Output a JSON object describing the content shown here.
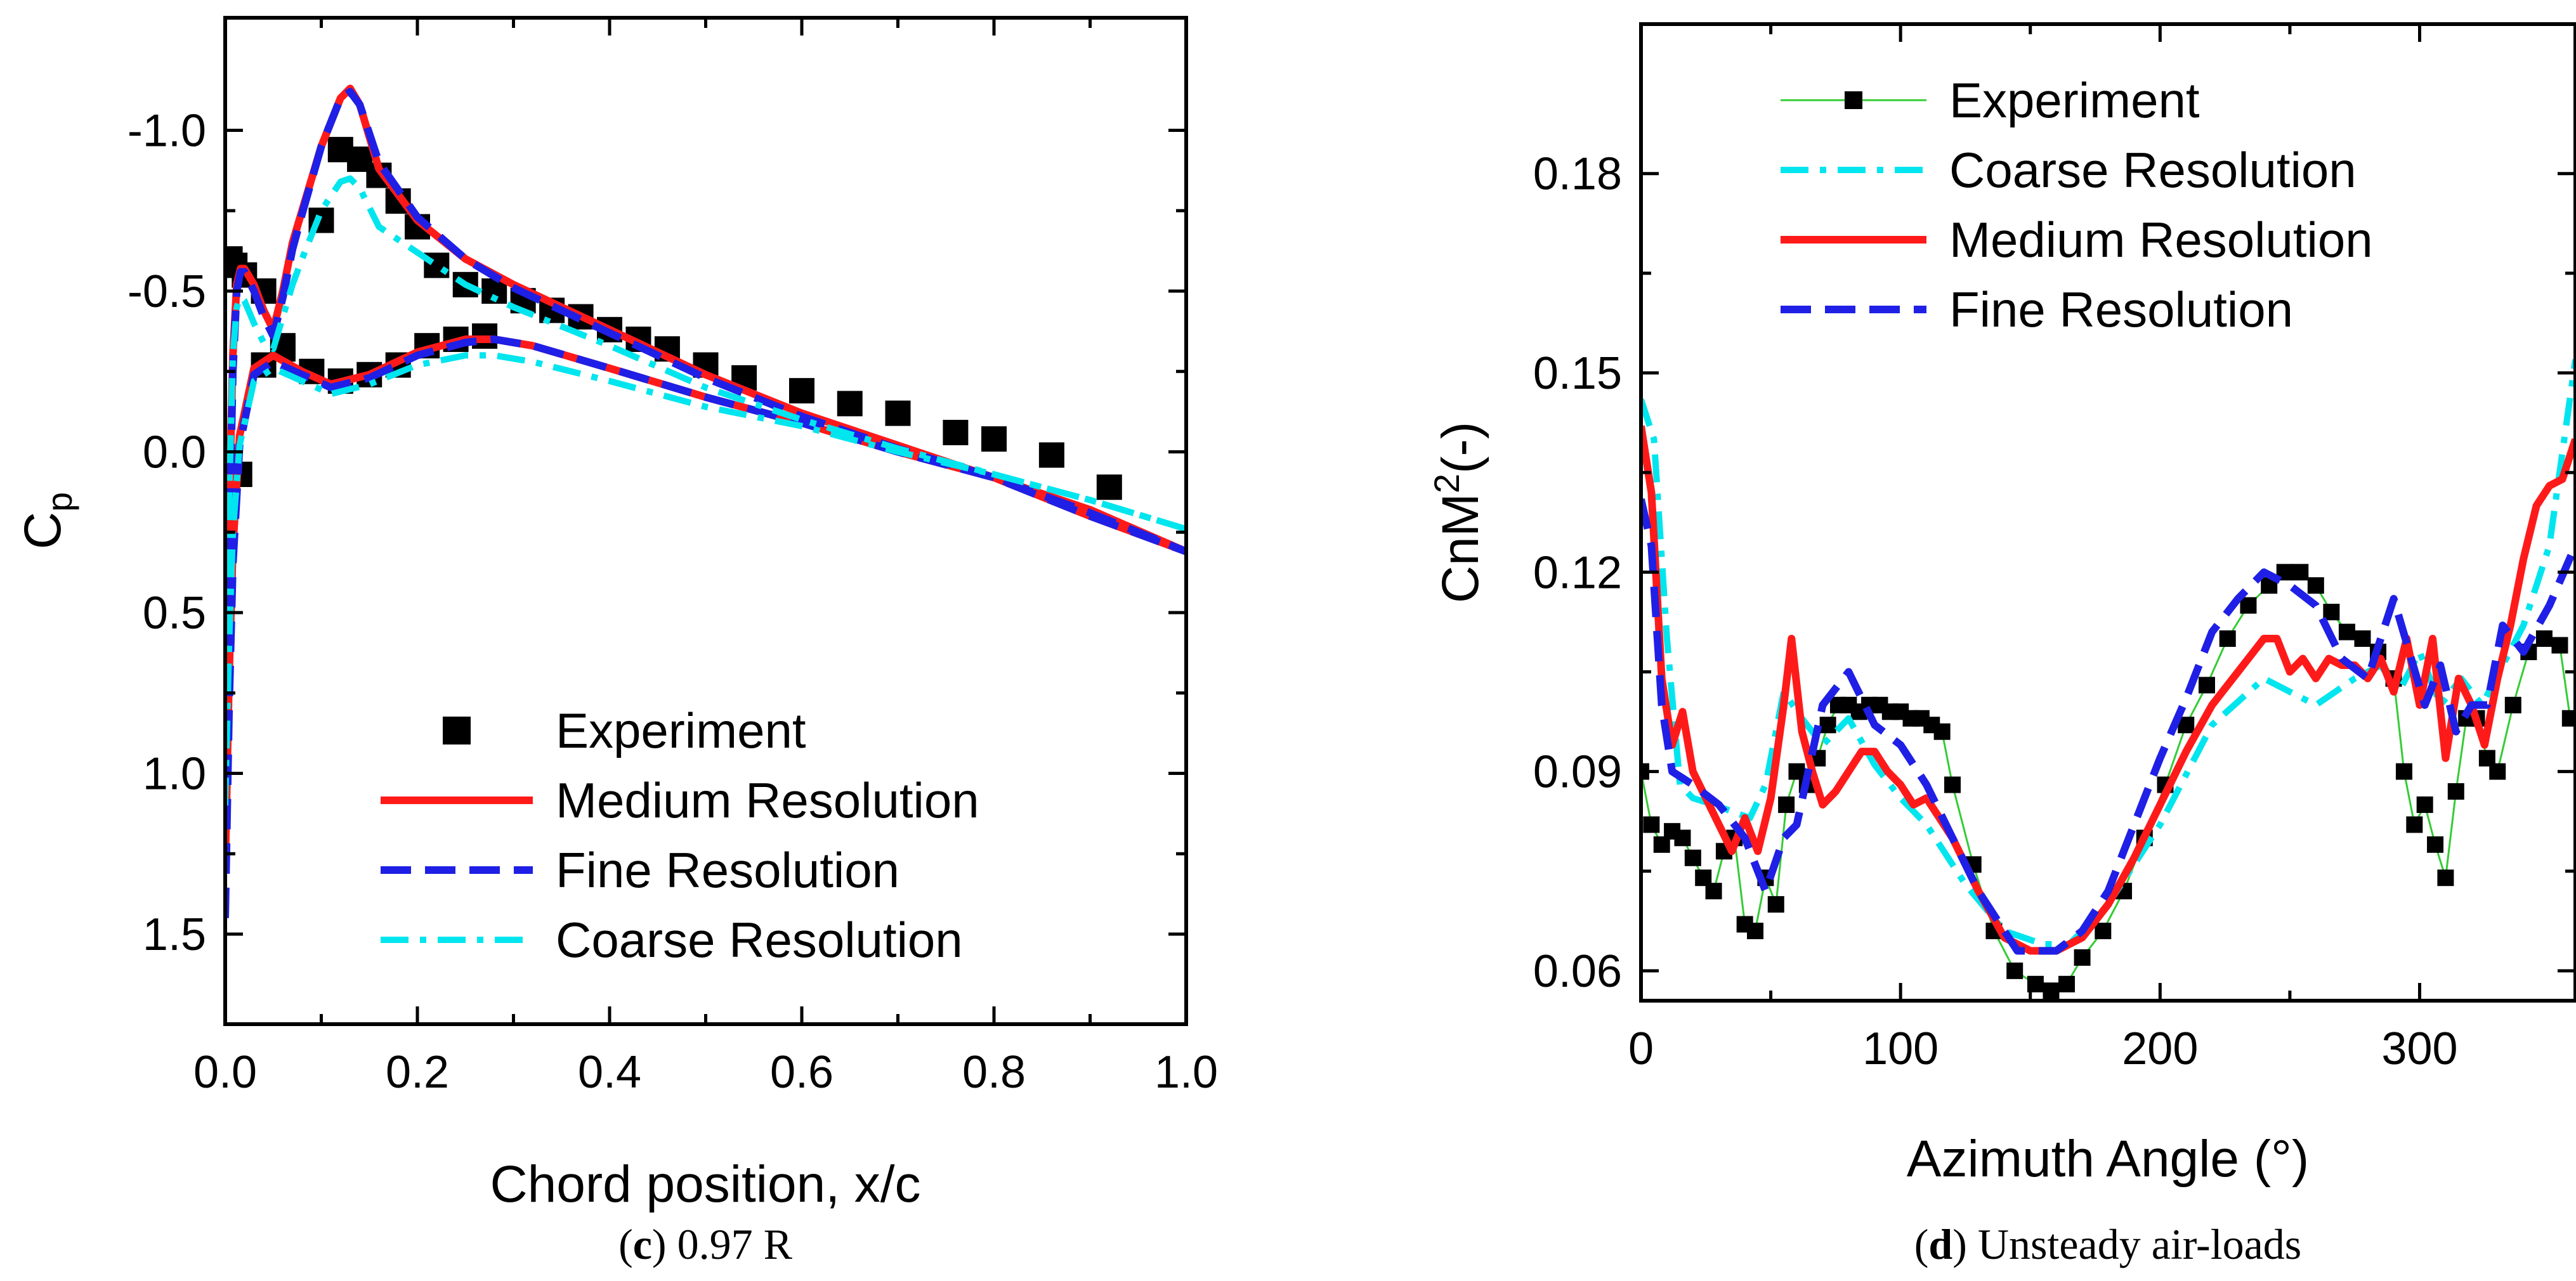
{
  "chart_data": [
    {
      "type": "line",
      "panel_label": "c",
      "caption": "0.97 R",
      "xlabel": "Chord position, x/c",
      "ylabel": "C",
      "ylabel_sub": "p",
      "xlim": [
        0.0,
        1.0
      ],
      "ylim": [
        -1.35,
        1.78
      ],
      "y_inverted": true,
      "x_ticks": [
        0.0,
        0.2,
        0.4,
        0.6,
        0.8,
        1.0
      ],
      "x_tick_labels": [
        "0.0",
        "0.2",
        "0.4",
        "0.6",
        "0.8",
        "1.0"
      ],
      "y_ticks": [
        -1.0,
        -0.5,
        0.0,
        0.5,
        1.0,
        1.5
      ],
      "y_tick_labels": [
        "-1.0",
        "-0.5",
        "0.0",
        "0.5",
        "1.0",
        "1.5"
      ],
      "legend_position": "bottom-right",
      "legend": [
        {
          "label": "Experiment",
          "series": "Experiment"
        },
        {
          "label": "Medium Resolution",
          "series": "Medium Resolution"
        },
        {
          "label": "Fine Resolution",
          "series": "Fine Resolution"
        },
        {
          "label": "Coarse Resolution",
          "series": "Coarse Resolution"
        }
      ],
      "series": [
        {
          "name": "Experiment",
          "style": "square-markers",
          "color": "#000000",
          "x": [
            0.005,
            0.01,
            0.02,
            0.04,
            0.06,
            0.1,
            0.12,
            0.14,
            0.16,
            0.18,
            0.2,
            0.22,
            0.25,
            0.28,
            0.31,
            0.34,
            0.37,
            0.4,
            0.43,
            0.46,
            0.5,
            0.54,
            0.6,
            0.65,
            0.7,
            0.76,
            0.8,
            0.86,
            0.92,
            0.015,
            0.04,
            0.06,
            0.09,
            0.12,
            0.15,
            0.18,
            0.21,
            0.24,
            0.27
          ],
          "y": [
            -0.6,
            -0.58,
            -0.55,
            -0.5,
            -0.33,
            -0.72,
            -0.94,
            -0.91,
            -0.86,
            -0.78,
            -0.7,
            -0.58,
            -0.52,
            -0.5,
            -0.47,
            -0.44,
            -0.42,
            -0.38,
            -0.35,
            -0.32,
            -0.27,
            -0.23,
            -0.19,
            -0.15,
            -0.12,
            -0.06,
            -0.04,
            0.01,
            0.11,
            0.07,
            -0.27,
            -0.32,
            -0.25,
            -0.22,
            -0.24,
            -0.27,
            -0.33,
            -0.35,
            -0.36
          ]
        },
        {
          "name": "Medium Resolution",
          "style": "solid",
          "color": "#ff1a1a",
          "x": [
            0.0,
            0.004,
            0.008,
            0.012,
            0.016,
            0.02,
            0.03,
            0.04,
            0.05,
            0.06,
            0.07,
            0.08,
            0.1,
            0.12,
            0.13,
            0.14,
            0.16,
            0.2,
            0.25,
            0.3,
            0.4,
            0.5,
            0.6,
            0.7,
            0.8,
            0.9,
            1.0,
            null,
            0.0,
            0.004,
            0.008,
            0.015,
            0.03,
            0.05,
            0.08,
            0.11,
            0.15,
            0.2,
            0.25,
            0.28,
            0.32,
            0.4,
            0.5,
            0.6,
            0.7,
            0.8,
            0.9,
            1.0
          ],
          "y": [
            1.3,
            0.2,
            -0.3,
            -0.52,
            -0.57,
            -0.57,
            -0.52,
            -0.44,
            -0.38,
            -0.5,
            -0.65,
            -0.75,
            -0.95,
            -1.1,
            -1.13,
            -1.08,
            -0.88,
            -0.72,
            -0.6,
            -0.52,
            -0.38,
            -0.24,
            -0.12,
            -0.02,
            0.08,
            0.2,
            0.31,
            null,
            1.3,
            0.7,
            0.3,
            -0.05,
            -0.26,
            -0.3,
            -0.25,
            -0.21,
            -0.24,
            -0.31,
            -0.35,
            -0.35,
            -0.33,
            -0.26,
            -0.17,
            -0.09,
            0.0,
            0.08,
            0.18,
            0.31
          ]
        },
        {
          "name": "Fine Resolution",
          "style": "dashed",
          "color": "#1f1fe6",
          "x": [
            0.0,
            0.004,
            0.008,
            0.012,
            0.016,
            0.02,
            0.03,
            0.04,
            0.05,
            0.06,
            0.07,
            0.08,
            0.1,
            0.12,
            0.13,
            0.14,
            0.16,
            0.2,
            0.25,
            0.3,
            0.4,
            0.5,
            0.6,
            0.7,
            0.8,
            0.9,
            1.0,
            null,
            0.0,
            0.004,
            0.008,
            0.015,
            0.03,
            0.05,
            0.08,
            0.11,
            0.15,
            0.2,
            0.25,
            0.28,
            0.32,
            0.4,
            0.5,
            0.6,
            0.7,
            0.8,
            0.9,
            1.0
          ],
          "y": [
            1.45,
            0.3,
            -0.25,
            -0.5,
            -0.56,
            -0.56,
            -0.5,
            -0.42,
            -0.36,
            -0.48,
            -0.63,
            -0.74,
            -0.95,
            -1.1,
            -1.12,
            -1.08,
            -0.9,
            -0.73,
            -0.6,
            -0.51,
            -0.37,
            -0.23,
            -0.11,
            -0.01,
            0.08,
            0.2,
            0.31,
            null,
            1.45,
            0.8,
            0.35,
            -0.02,
            -0.24,
            -0.28,
            -0.24,
            -0.2,
            -0.23,
            -0.3,
            -0.34,
            -0.35,
            -0.33,
            -0.26,
            -0.17,
            -0.09,
            0.0,
            0.08,
            0.19,
            0.31
          ]
        },
        {
          "name": "Coarse Resolution",
          "style": "dash-dot",
          "color": "#00e5ee",
          "x": [
            0.0,
            0.004,
            0.008,
            0.012,
            0.016,
            0.02,
            0.03,
            0.04,
            0.05,
            0.06,
            0.07,
            0.08,
            0.1,
            0.12,
            0.13,
            0.14,
            0.16,
            0.2,
            0.25,
            0.3,
            0.4,
            0.5,
            0.6,
            0.7,
            0.8,
            0.9,
            1.0,
            null,
            0.0,
            0.004,
            0.008,
            0.015,
            0.03,
            0.05,
            0.08,
            0.11,
            0.15,
            0.2,
            0.25,
            0.28,
            0.32,
            0.4,
            0.5,
            0.6,
            0.7,
            0.8,
            0.9,
            1.0
          ],
          "y": [
            1.1,
            0.15,
            -0.3,
            -0.45,
            -0.48,
            -0.47,
            -0.4,
            -0.34,
            -0.32,
            -0.42,
            -0.52,
            -0.6,
            -0.75,
            -0.84,
            -0.85,
            -0.82,
            -0.7,
            -0.62,
            -0.52,
            -0.45,
            -0.33,
            -0.2,
            -0.1,
            -0.01,
            0.07,
            0.15,
            0.24,
            null,
            1.1,
            0.6,
            0.25,
            -0.02,
            -0.22,
            -0.26,
            -0.22,
            -0.18,
            -0.21,
            -0.27,
            -0.3,
            -0.3,
            -0.28,
            -0.22,
            -0.14,
            -0.08,
            0.0,
            0.07,
            0.15,
            0.24
          ]
        }
      ]
    },
    {
      "type": "line",
      "panel_label": "d",
      "caption": "Unsteady air-loads",
      "xlabel": "Azimuth Angle (°)",
      "ylabel": "CnM",
      "ylabel_sup": "2",
      "ylabel_suffix": "(-)",
      "xlim": [
        0,
        360
      ],
      "ylim": [
        0.0555,
        0.2025
      ],
      "x_ticks": [
        0,
        100,
        200,
        300
      ],
      "x_tick_labels": [
        "0",
        "100",
        "200",
        "300"
      ],
      "y_ticks": [
        0.06,
        0.09,
        0.12,
        0.15,
        0.18
      ],
      "y_tick_labels": [
        "0.06",
        "0.09",
        "0.12",
        "0.15",
        "0.18"
      ],
      "legend_position": "top-left",
      "legend": [
        {
          "label": "Experiment",
          "series": "Experiment"
        },
        {
          "label": "Coarse Resolution",
          "series": "Coarse Resolution"
        },
        {
          "label": "Medium Resolution",
          "series": "Medium Resolution"
        },
        {
          "label": "Fine Resolution",
          "series": "Fine Resolution"
        }
      ],
      "series": [
        {
          "name": "Experiment",
          "style": "line-with-square-markers",
          "color": "#000000",
          "line_color": "#33cc33",
          "x": [
            0,
            4,
            8,
            12,
            16,
            20,
            24,
            28,
            32,
            36,
            40,
            44,
            48,
            52,
            56,
            60,
            64,
            68,
            72,
            76,
            80,
            84,
            88,
            92,
            96,
            100,
            104,
            108,
            112,
            116,
            120,
            128,
            136,
            144,
            152,
            158,
            164,
            170,
            178,
            186,
            194,
            202,
            210,
            218,
            226,
            234,
            242,
            248,
            254,
            260,
            266,
            272,
            278,
            284,
            290,
            294,
            298,
            302,
            306,
            310,
            314,
            318,
            322,
            326,
            330,
            336,
            342,
            348,
            354,
            358
          ],
          "y": [
            0.09,
            0.082,
            0.079,
            0.081,
            0.08,
            0.077,
            0.074,
            0.072,
            0.078,
            0.08,
            0.067,
            0.066,
            0.074,
            0.07,
            0.085,
            0.09,
            0.088,
            0.092,
            0.097,
            0.1,
            0.1,
            0.099,
            0.1,
            0.1,
            0.099,
            0.099,
            0.098,
            0.098,
            0.097,
            0.096,
            0.088,
            0.076,
            0.066,
            0.06,
            0.058,
            0.057,
            0.058,
            0.062,
            0.066,
            0.072,
            0.08,
            0.088,
            0.097,
            0.103,
            0.11,
            0.115,
            0.118,
            0.12,
            0.12,
            0.118,
            0.114,
            0.111,
            0.11,
            0.108,
            0.104,
            0.09,
            0.082,
            0.085,
            0.079,
            0.074,
            0.087,
            0.098,
            0.098,
            0.092,
            0.09,
            0.1,
            0.108,
            0.11,
            0.109,
            0.098
          ]
        },
        {
          "name": "Coarse Resolution",
          "style": "dash-dot",
          "color": "#00e5ee",
          "x": [
            0,
            5,
            10,
            15,
            20,
            28,
            35,
            42,
            48,
            55,
            62,
            70,
            80,
            90,
            100,
            110,
            125,
            140,
            155,
            165,
            180,
            200,
            220,
            240,
            260,
            275,
            285,
            292,
            300,
            308,
            316,
            324,
            332,
            340,
            350,
            360
          ],
          "y": [
            0.146,
            0.14,
            0.11,
            0.088,
            0.086,
            0.085,
            0.084,
            0.083,
            0.088,
            0.102,
            0.098,
            0.094,
            0.098,
            0.091,
            0.086,
            0.082,
            0.073,
            0.066,
            0.064,
            0.064,
            0.07,
            0.082,
            0.097,
            0.104,
            0.1,
            0.104,
            0.106,
            0.102,
            0.108,
            0.1,
            0.104,
            0.1,
            0.106,
            0.112,
            0.124,
            0.152
          ]
        },
        {
          "name": "Medium Resolution",
          "style": "solid",
          "color": "#ff1a1a",
          "x": [
            0,
            4,
            8,
            12,
            16,
            20,
            25,
            30,
            35,
            40,
            45,
            50,
            55,
            58,
            62,
            66,
            70,
            75,
            80,
            85,
            90,
            95,
            100,
            105,
            110,
            115,
            120,
            130,
            140,
            150,
            160,
            170,
            180,
            190,
            200,
            210,
            220,
            230,
            240,
            245,
            250,
            255,
            260,
            265,
            270,
            275,
            280,
            285,
            290,
            295,
            300,
            305,
            310,
            315,
            320,
            325,
            330,
            335,
            340,
            345,
            350,
            355,
            360
          ],
          "y": [
            0.142,
            0.132,
            0.104,
            0.094,
            0.099,
            0.09,
            0.086,
            0.082,
            0.078,
            0.083,
            0.078,
            0.086,
            0.1,
            0.11,
            0.096,
            0.09,
            0.085,
            0.087,
            0.09,
            0.093,
            0.093,
            0.09,
            0.088,
            0.085,
            0.086,
            0.083,
            0.08,
            0.072,
            0.065,
            0.063,
            0.063,
            0.065,
            0.07,
            0.077,
            0.085,
            0.093,
            0.1,
            0.105,
            0.11,
            0.11,
            0.105,
            0.107,
            0.104,
            0.107,
            0.106,
            0.106,
            0.104,
            0.107,
            0.102,
            0.11,
            0.1,
            0.11,
            0.092,
            0.104,
            0.1,
            0.094,
            0.104,
            0.112,
            0.122,
            0.13,
            0.133,
            0.134,
            0.14
          ]
        },
        {
          "name": "Fine Resolution",
          "style": "dashed",
          "color": "#1f1fe6",
          "x": [
            0,
            4,
            8,
            12,
            16,
            20,
            30,
            40,
            48,
            55,
            60,
            70,
            80,
            90,
            100,
            110,
            120,
            130,
            145,
            160,
            170,
            180,
            190,
            200,
            210,
            220,
            230,
            240,
            250,
            260,
            270,
            280,
            290,
            296,
            302,
            308,
            314,
            320,
            326,
            332,
            340,
            350,
            360
          ],
          "y": [
            0.131,
            0.124,
            0.1,
            0.09,
            0.089,
            0.088,
            0.085,
            0.08,
            0.072,
            0.08,
            0.082,
            0.1,
            0.105,
            0.097,
            0.094,
            0.088,
            0.08,
            0.072,
            0.063,
            0.063,
            0.066,
            0.072,
            0.082,
            0.092,
            0.101,
            0.111,
            0.116,
            0.12,
            0.118,
            0.115,
            0.107,
            0.104,
            0.116,
            0.108,
            0.1,
            0.106,
            0.096,
            0.1,
            0.1,
            0.112,
            0.108,
            0.115,
            0.124
          ]
        }
      ]
    }
  ]
}
